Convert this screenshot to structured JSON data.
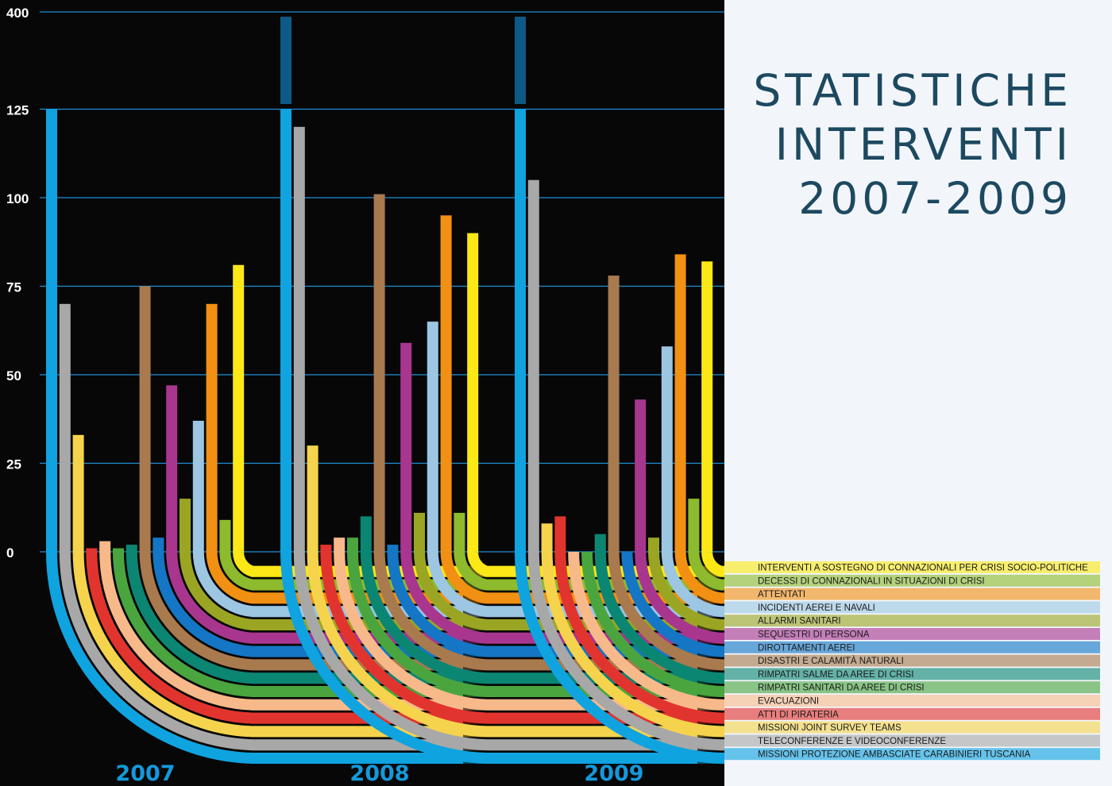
{
  "title": {
    "lines": [
      "STATISTICHE",
      "INTERVENTI",
      "2007-2009"
    ]
  },
  "chart_data": {
    "type": "bar",
    "title": "STATISTICHE INTERVENTI 2007-2009",
    "y_axis": {
      "ticks": [
        "0",
        "25",
        "50",
        "75",
        "100",
        "125",
        "400"
      ],
      "broken": true,
      "ylim": [
        0,
        400
      ]
    },
    "groups": [
      "2007",
      "2008",
      "2009"
    ],
    "series": [
      {
        "name": "MISSIONI PROTEZIONE AMBASCIATE CARABINIERI TUSCANIA",
        "color": "#0fa3e0",
        "values": [
          140,
          393,
          393
        ]
      },
      {
        "name": "TELECONFERENZE E VIDEOCONFERENZE",
        "color": "#a8a8a8",
        "values": [
          70,
          120,
          105
        ]
      },
      {
        "name": "MISSIONI JOINT SURVEY TEAMS",
        "color": "#f5d34d",
        "values": [
          33,
          30,
          8
        ]
      },
      {
        "name": "ATTI DI PIRATERIA",
        "color": "#e2342e",
        "values": [
          1,
          2,
          10
        ]
      },
      {
        "name": "EVACUAZIONI",
        "color": "#f7b98a",
        "values": [
          3,
          4,
          0
        ]
      },
      {
        "name": "RIMPATRI SANITARI DA AREE DI CRISI",
        "color": "#4aa53f",
        "values": [
          1,
          4,
          0
        ]
      },
      {
        "name": "RIMPATRI SALME DA AREE DI CRISI",
        "color": "#0b8673",
        "values": [
          2,
          10,
          5
        ]
      },
      {
        "name": "DISASTRI E CALAMITÀ NATURALI",
        "color": "#a87a4e",
        "values": [
          75,
          101,
          78
        ]
      },
      {
        "name": "DIROTTAMENTI AEREI",
        "color": "#1476c4",
        "values": [
          4,
          2,
          0
        ]
      },
      {
        "name": "SEQUESTRI DI PERSONA",
        "color": "#a8368f",
        "values": [
          47,
          59,
          43
        ]
      },
      {
        "name": "ALLARMI SANITARI",
        "color": "#9ba524",
        "values": [
          15,
          11,
          4
        ]
      },
      {
        "name": "INCIDENTI AEREI E NAVALI",
        "color": "#9cc6e2",
        "values": [
          37,
          65,
          58
        ]
      },
      {
        "name": "ATTENTATI",
        "color": "#f29013",
        "values": [
          70,
          95,
          84
        ]
      },
      {
        "name": "DECESSI DI CONNAZIONALI IN SITUAZIONI DI CRISI",
        "color": "#8eba2d",
        "values": [
          9,
          11,
          15
        ]
      },
      {
        "name": "INTERVENTI A SOSTEGNO DI CONNAZIONALI PER CRISI SOCIO-POLITICHE",
        "color": "#fbe816",
        "values": [
          81,
          90,
          82
        ]
      }
    ],
    "legend_placement": "bottom-right",
    "grid": true,
    "colors": {
      "grid": "#1f8fd6",
      "panel_bg": "#070707",
      "year_label": "#1499dc",
      "title": "#1d4960"
    }
  }
}
